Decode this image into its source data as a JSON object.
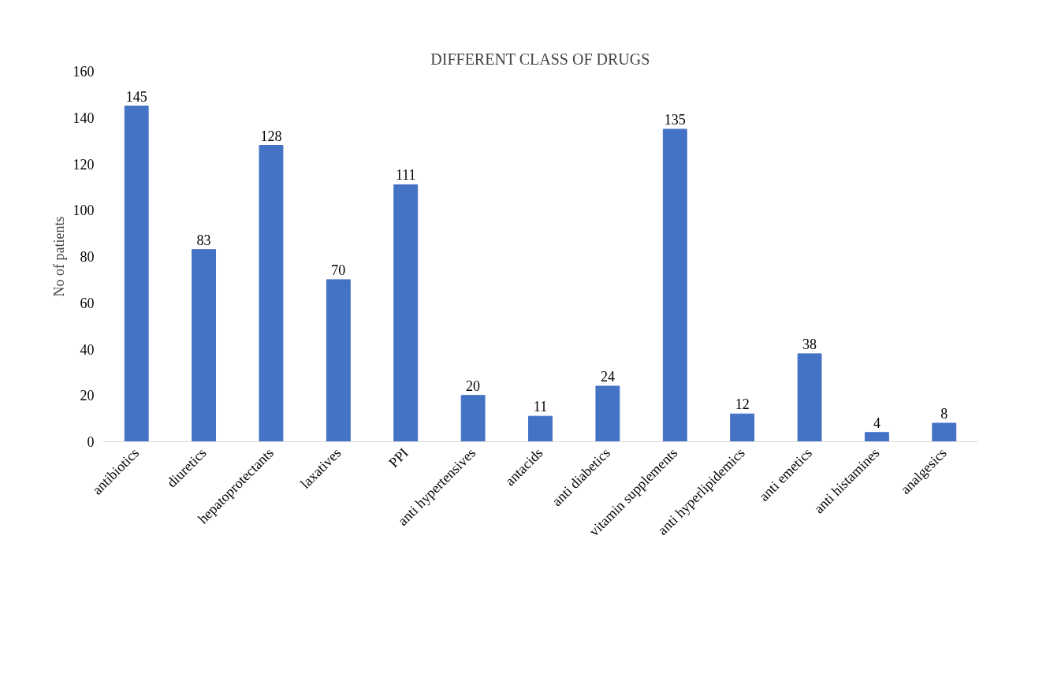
{
  "chart_data": {
    "type": "bar",
    "title": "DIFFERENT CLASS OF DRUGS",
    "ylabel": "No of patients",
    "categories": [
      "antibiotics",
      "diuretics",
      "hepatoprotectants",
      "laxatives",
      "PPI",
      "anti hypertensives",
      "antacids",
      "anti diabetics",
      "vitamin supplements",
      "anti hyperlipidemics",
      "anti emetics",
      "anti histamines",
      "analgesics"
    ],
    "values": [
      145,
      83,
      128,
      70,
      111,
      20,
      11,
      24,
      135,
      12,
      38,
      4,
      8
    ],
    "color": "#4472c4",
    "ylim": [
      0,
      160
    ],
    "yticks": [
      0,
      20,
      40,
      60,
      80,
      100,
      120,
      140,
      160
    ],
    "grid": false,
    "data_labels": true
  }
}
